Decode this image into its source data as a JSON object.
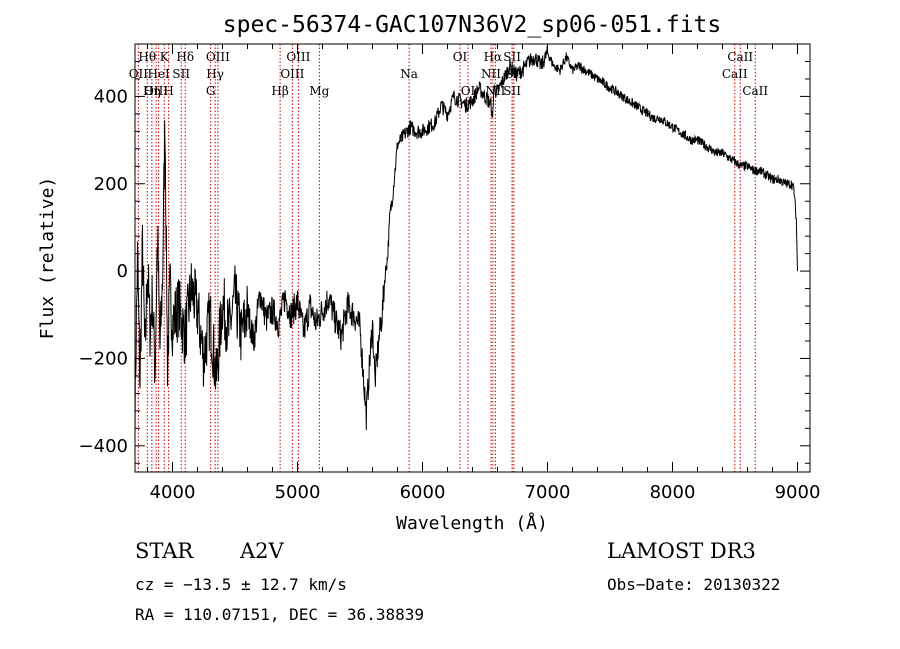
{
  "chart_data": {
    "type": "line",
    "title": "spec-56374-GAC107N36V2_sp06-051.fits",
    "xlabel": "Wavelength (Å)",
    "ylabel": "Flux (relative)",
    "xlim": [
      3700,
      9100
    ],
    "ylim": [
      -460,
      520
    ],
    "x_ticks": [
      4000,
      5000,
      6000,
      7000,
      8000,
      9000
    ],
    "y_ticks": [
      -400,
      -200,
      0,
      200,
      400
    ],
    "series": [
      {
        "name": "spectrum",
        "x": [
          3700,
          3720,
          3740,
          3760,
          3780,
          3800,
          3820,
          3840,
          3860,
          3880,
          3900,
          3920,
          3940,
          3960,
          3980,
          4000,
          4050,
          4100,
          4150,
          4200,
          4250,
          4300,
          4350,
          4400,
          4450,
          4500,
          4550,
          4600,
          4650,
          4700,
          4750,
          4800,
          4850,
          4900,
          4950,
          5000,
          5050,
          5100,
          5150,
          5200,
          5250,
          5300,
          5350,
          5400,
          5450,
          5500,
          5550,
          5580,
          5600,
          5620,
          5650,
          5680,
          5700,
          5720,
          5740,
          5760,
          5780,
          5800,
          5850,
          5900,
          5950,
          6000,
          6050,
          6100,
          6150,
          6200,
          6250,
          6300,
          6350,
          6400,
          6450,
          6500,
          6550,
          6560,
          6570,
          6600,
          6650,
          6700,
          6750,
          6800,
          6850,
          6900,
          6950,
          7000,
          7050,
          7100,
          7150,
          7200,
          7250,
          7300,
          7350,
          7400,
          7450,
          7500,
          7550,
          7600,
          7650,
          7700,
          7750,
          7800,
          7850,
          7900,
          7950,
          8000,
          8050,
          8100,
          8150,
          8200,
          8250,
          8300,
          8350,
          8400,
          8450,
          8500,
          8550,
          8600,
          8650,
          8700,
          8750,
          8800,
          8850,
          8900,
          8950,
          8970,
          8990,
          9000
        ],
        "y": [
          -310,
          30,
          -250,
          60,
          -200,
          10,
          -130,
          -60,
          -230,
          80,
          -180,
          -20,
          350,
          -210,
          -40,
          -120,
          -80,
          -150,
          -40,
          -90,
          -200,
          -100,
          -250,
          -70,
          -140,
          -60,
          -150,
          -90,
          -160,
          -50,
          -110,
          -90,
          -120,
          -60,
          -100,
          -70,
          -140,
          -80,
          -120,
          -90,
          -60,
          -110,
          -150,
          -80,
          -100,
          -130,
          -330,
          -200,
          -120,
          -250,
          -160,
          -90,
          -10,
          30,
          130,
          170,
          230,
          290,
          310,
          330,
          320,
          320,
          330,
          340,
          380,
          360,
          400,
          390,
          380,
          390,
          420,
          400,
          380,
          340,
          420,
          410,
          440,
          470,
          450,
          460,
          480,
          490,
          470,
          500,
          470,
          460,
          490,
          460,
          470,
          460,
          450,
          440,
          430,
          420,
          410,
          400,
          390,
          380,
          370,
          360,
          350,
          350,
          340,
          330,
          320,
          310,
          300,
          300,
          290,
          280,
          270,
          270,
          260,
          250,
          240,
          240,
          230,
          230,
          220,
          210,
          210,
          200,
          200,
          190,
          120,
          0
        ]
      }
    ],
    "emission_lines": [
      {
        "label": "Hθ",
        "wave": 3798,
        "row": 1
      },
      {
        "label": "OII",
        "wave": 3727,
        "row": 2
      },
      {
        "label": "OIII",
        "wave": 3869,
        "row": 3
      },
      {
        "label": "HeI",
        "wave": 3889,
        "row": 2
      },
      {
        "label": "Hη",
        "wave": 3835,
        "row": 3
      },
      {
        "label": "K",
        "wave": 3934,
        "row": 1
      },
      {
        "label": "H",
        "wave": 3969,
        "row": 3
      },
      {
        "label": "SII",
        "wave": 4070,
        "row": 2
      },
      {
        "label": "Hδ",
        "wave": 4102,
        "row": 1
      },
      {
        "label": "OIII",
        "wave": 4363,
        "row": 1
      },
      {
        "label": "Hγ",
        "wave": 4341,
        "row": 2
      },
      {
        "label": "G",
        "wave": 4305,
        "row": 3
      },
      {
        "label": "OIII",
        "wave": 5007,
        "row": 1
      },
      {
        "label": "OIII",
        "wave": 4959,
        "row": 2
      },
      {
        "label": "Hβ",
        "wave": 4861,
        "row": 3
      },
      {
        "label": "Mg",
        "wave": 5175,
        "row": 3
      },
      {
        "label": "Na",
        "wave": 5893,
        "row": 2
      },
      {
        "label": "OI",
        "wave": 6300,
        "row": 1
      },
      {
        "label": "OI",
        "wave": 6364,
        "row": 3
      },
      {
        "label": "Hα",
        "wave": 6563,
        "row": 1
      },
      {
        "label": "NII",
        "wave": 6548,
        "row": 2
      },
      {
        "label": "NII",
        "wave": 6583,
        "row": 3
      },
      {
        "label": "SII",
        "wave": 6717,
        "row": 1
      },
      {
        "label": "SII",
        "wave": 6731,
        "row": 2
      },
      {
        "label": "SII",
        "wave": 6717,
        "row": 3
      },
      {
        "label": "CaII",
        "wave": 8542,
        "row": 1
      },
      {
        "label": "CaII",
        "wave": 8498,
        "row": 2
      },
      {
        "label": "CaII",
        "wave": 8662,
        "row": 3
      }
    ]
  },
  "info": {
    "object_type": "STAR",
    "subclass": "A2V",
    "survey": "LAMOST DR3",
    "redshift": "cz = −13.5 ± 12.7 km/s",
    "obs_date": "Obs−Date: 20130322",
    "coords": "RA = 110.07151, DEC =  36.38839"
  },
  "colors": {
    "line_marker": "#cc0000",
    "spectrum": "#000000"
  }
}
